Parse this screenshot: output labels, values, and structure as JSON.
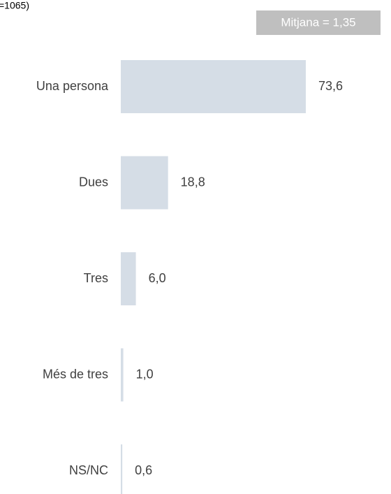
{
  "chart_data": {
    "type": "bar",
    "orientation": "horizontal",
    "note": "=1065)",
    "annotation": "Mitjana = 1,35",
    "categories": [
      "Una persona",
      "Dues",
      "Tres",
      "Més de tres",
      "NS/NC"
    ],
    "values": [
      73.6,
      18.8,
      6.0,
      1.0,
      0.6
    ],
    "value_labels": [
      "73,6",
      "18,8",
      "6,0",
      "1,0",
      "0,6"
    ],
    "color": "#d5dde6",
    "xlim": [
      0,
      100
    ]
  }
}
